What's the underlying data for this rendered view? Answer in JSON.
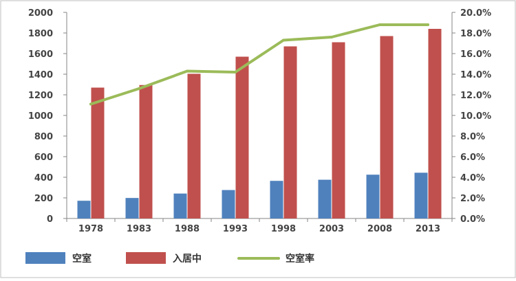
{
  "chart_data": {
    "type": "bar",
    "categories": [
      "1978",
      "1983",
      "1988",
      "1993",
      "1998",
      "2003",
      "2008",
      "2013"
    ],
    "series": [
      {
        "name": "空室",
        "kind": "bar",
        "axis": "left",
        "color": "#4f81bd",
        "values": [
          172,
          199,
          242,
          276,
          365,
          376,
          425,
          444
        ]
      },
      {
        "name": "入居中",
        "kind": "bar",
        "axis": "left",
        "color": "#c0504d",
        "values": [
          1270,
          1295,
          1404,
          1570,
          1670,
          1710,
          1770,
          1840
        ]
      },
      {
        "name": "空室率",
        "kind": "line",
        "axis": "right",
        "color": "#9bbb59",
        "values": [
          11.1,
          12.6,
          14.3,
          14.2,
          17.3,
          17.6,
          18.8,
          18.8
        ]
      }
    ],
    "y_left": {
      "min": 0,
      "max": 2000,
      "step": 200,
      "tick_labels": [
        "0",
        "200",
        "400",
        "600",
        "800",
        "1000",
        "1200",
        "1400",
        "1600",
        "1800",
        "2000"
      ]
    },
    "y_right": {
      "min": 0,
      "max": 20,
      "step": 2,
      "unit": "%",
      "tick_labels": [
        "0.0%",
        "2.0%",
        "4.0%",
        "6.0%",
        "8.0%",
        "10.0%",
        "12.0%",
        "14.0%",
        "16.0%",
        "18.0%",
        "20.0%"
      ]
    },
    "grid": "none",
    "legend_position": "bottom"
  }
}
